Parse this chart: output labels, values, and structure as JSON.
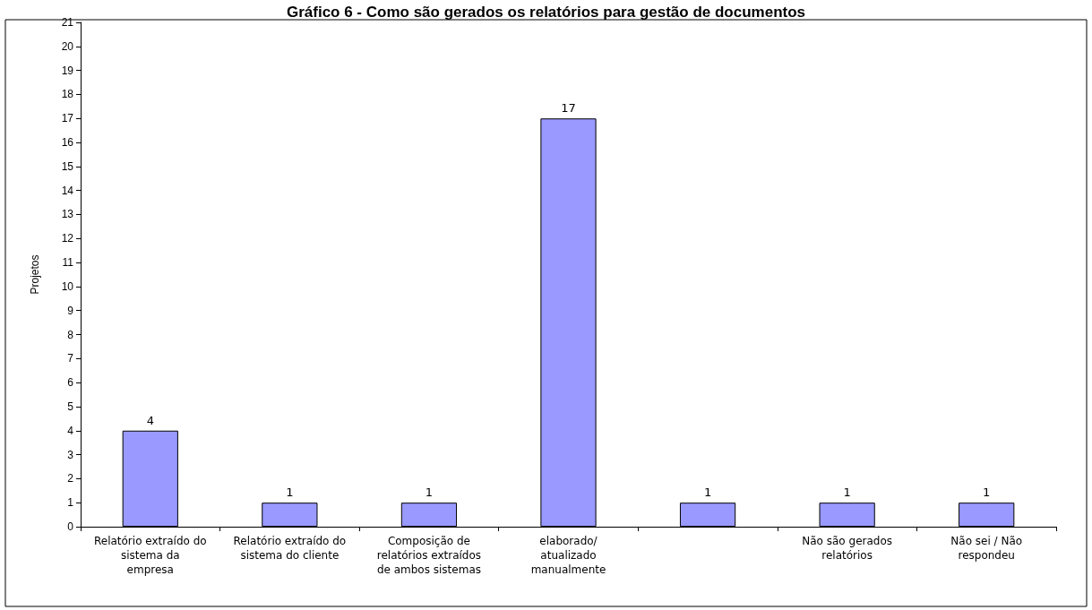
{
  "chart_data": {
    "type": "bar",
    "title": "Gráfico 6 - Como são gerados os relatórios para gestão de documentos",
    "ylabel": "Projetos",
    "categories": [
      "Relatório extraído do\nsistema da\nempresa",
      "Relatório extraído do\nsistema do cliente",
      "Composição de\nrelatórios extraídos\nde ambos sistemas",
      "elaborado/\natualizado\nmanualmente",
      null,
      "Não são gerados\nrelatórios",
      "Não sei / Não\nrespondeu"
    ],
    "values": [
      4,
      1,
      1,
      17,
      1,
      1,
      1
    ],
    "color": "#9999ff",
    "ylim": [
      0,
      21
    ],
    "yticks": [
      0,
      1,
      2,
      3,
      4,
      5,
      6,
      7,
      8,
      9,
      10,
      11,
      12,
      13,
      14,
      15,
      16,
      17,
      18,
      19,
      20,
      21
    ],
    "grid": false,
    "data_labels": true
  }
}
